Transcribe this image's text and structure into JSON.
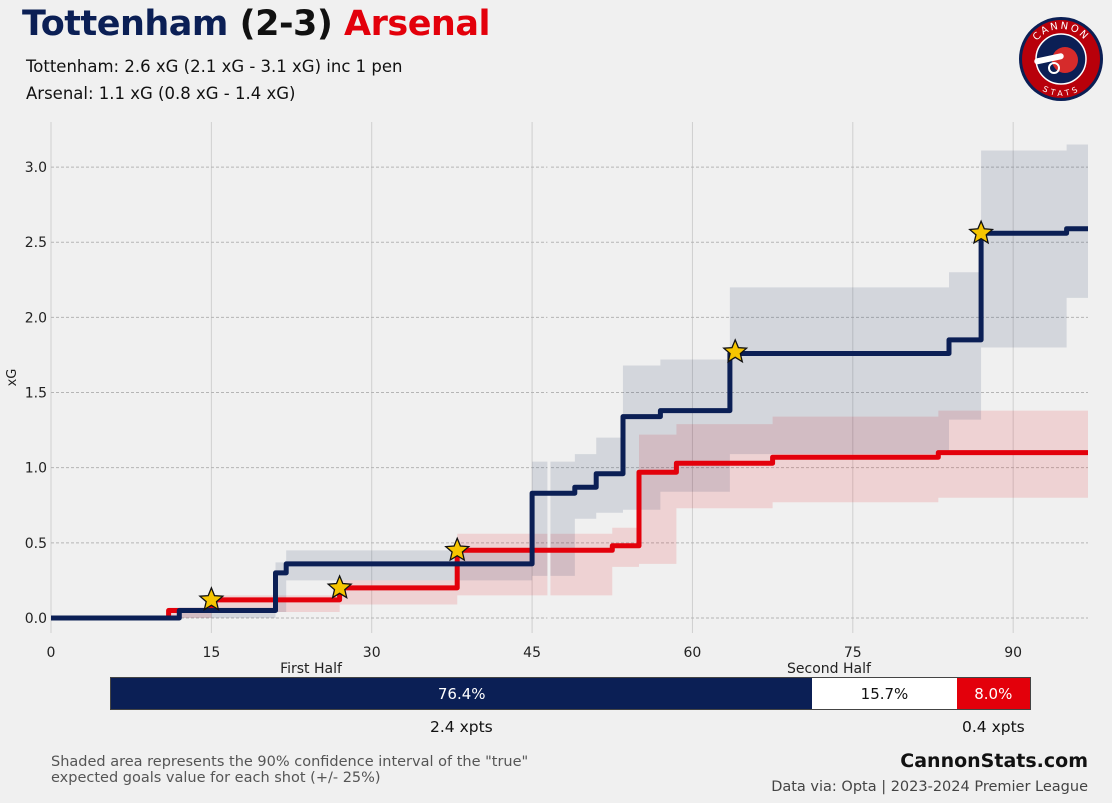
{
  "header": {
    "home_team": "Tottenham",
    "score": "(2-3)",
    "away_team": "Arsenal",
    "home_summary": "Tottenham: 2.6 xG (2.1 xG - 3.1 xG) inc 1 pen",
    "away_summary": "Arsenal: 1.1 xG (0.8 xG - 1.4 xG)"
  },
  "logo": {
    "top_text": "CANNON",
    "bottom_text": "STATS"
  },
  "colors": {
    "home": "#0b1f55",
    "away": "#e3000b",
    "goal_marker": "#f6c500"
  },
  "chart_data": {
    "type": "line",
    "step": true,
    "ylabel": "xG",
    "xlabel": "",
    "xlim": [
      0,
      97
    ],
    "ylim": [
      -0.1,
      3.3
    ],
    "x_ticks": [
      0,
      15,
      30,
      45,
      60,
      75,
      90
    ],
    "y_ticks": [
      0.0,
      0.5,
      1.0,
      1.5,
      2.0,
      2.5,
      3.0
    ],
    "period_labels": [
      "First Half",
      "Second Half"
    ],
    "grid": true,
    "series": [
      {
        "name": "Tottenham",
        "color": "#0b1f55",
        "steps": [
          [
            0,
            0
          ],
          [
            12,
            0
          ],
          [
            12,
            0.05
          ],
          [
            21,
            0.05
          ],
          [
            21,
            0.3
          ],
          [
            22,
            0.3
          ],
          [
            22,
            0.36
          ],
          [
            45,
            0.36
          ],
          [
            45,
            0.83
          ],
          [
            49,
            0.83
          ],
          [
            49,
            0.87
          ],
          [
            51,
            0.87
          ],
          [
            51,
            0.96
          ],
          [
            53.5,
            0.96
          ],
          [
            53.5,
            1.34
          ],
          [
            57,
            1.34
          ],
          [
            57,
            1.38
          ],
          [
            63.5,
            1.38
          ],
          [
            63.5,
            1.76
          ],
          [
            84,
            1.76
          ],
          [
            84,
            1.85
          ],
          [
            87,
            1.85
          ],
          [
            87,
            2.56
          ],
          [
            95,
            2.56
          ],
          [
            95,
            2.59
          ],
          [
            97,
            2.59
          ]
        ],
        "ci_low": [
          [
            0,
            0
          ],
          [
            12,
            0
          ],
          [
            21,
            0.04
          ],
          [
            22,
            0.25
          ],
          [
            45,
            0.28
          ],
          [
            49,
            0.66
          ],
          [
            51,
            0.7
          ],
          [
            53.5,
            0.72
          ],
          [
            57,
            0.84
          ],
          [
            63.5,
            1.09
          ],
          [
            84,
            1.32
          ],
          [
            87,
            1.8
          ],
          [
            95,
            2.13
          ],
          [
            97,
            2.13
          ]
        ],
        "ci_high": [
          [
            0,
            0
          ],
          [
            12,
            0.07
          ],
          [
            21,
            0.37
          ],
          [
            22,
            0.45
          ],
          [
            45,
            1.04
          ],
          [
            49,
            1.09
          ],
          [
            51,
            1.2
          ],
          [
            53.5,
            1.68
          ],
          [
            57,
            1.72
          ],
          [
            63.5,
            2.2
          ],
          [
            84,
            2.3
          ],
          [
            87,
            3.11
          ],
          [
            95,
            3.15
          ],
          [
            97,
            3.15
          ]
        ],
        "goals": [
          [
            15,
            0.12
          ],
          [
            27,
            0.2
          ],
          [
            38,
            0.45
          ],
          [
            64,
            1.77
          ],
          [
            87,
            2.56
          ]
        ],
        "goals_team": [
          "away",
          "away",
          "away",
          "home",
          "home"
        ]
      },
      {
        "name": "Arsenal",
        "color": "#e3000b",
        "steps": [
          [
            0,
            0
          ],
          [
            11,
            0
          ],
          [
            11,
            0.05
          ],
          [
            15,
            0.05
          ],
          [
            15,
            0.12
          ],
          [
            27,
            0.12
          ],
          [
            27,
            0.2
          ],
          [
            38,
            0.2
          ],
          [
            38,
            0.45
          ],
          [
            52.5,
            0.45
          ],
          [
            52.5,
            0.48
          ],
          [
            55,
            0.48
          ],
          [
            55,
            0.97
          ],
          [
            58.5,
            0.97
          ],
          [
            58.5,
            1.03
          ],
          [
            67.5,
            1.03
          ],
          [
            67.5,
            1.07
          ],
          [
            83,
            1.07
          ],
          [
            83,
            1.1
          ],
          [
            97,
            1.1
          ]
        ],
        "ci_low": [
          [
            0,
            0
          ],
          [
            11,
            0
          ],
          [
            15,
            0.04
          ],
          [
            27,
            0.09
          ],
          [
            38,
            0.15
          ],
          [
            52.5,
            0.34
          ],
          [
            55,
            0.36
          ],
          [
            58.5,
            0.73
          ],
          [
            67.5,
            0.77
          ],
          [
            83,
            0.8
          ],
          [
            97,
            0.82
          ]
        ],
        "ci_high": [
          [
            0,
            0
          ],
          [
            11,
            0.07
          ],
          [
            15,
            0.15
          ],
          [
            27,
            0.25
          ],
          [
            38,
            0.56
          ],
          [
            52.5,
            0.6
          ],
          [
            55,
            1.22
          ],
          [
            58.5,
            1.29
          ],
          [
            67.5,
            1.34
          ],
          [
            83,
            1.38
          ],
          [
            97,
            1.38
          ]
        ]
      }
    ]
  },
  "probability_bar": {
    "home_pct": 76.4,
    "draw_pct": 15.7,
    "away_pct": 8.0,
    "home_label": "76.4%",
    "draw_label": "15.7%",
    "away_label": "8.0%",
    "home_xpts": "2.4 xpts",
    "away_xpts": "0.4 xpts"
  },
  "footer": {
    "note_line1": "Shaded area represents the 90% confidence interval of the \"true\"",
    "note_line2": "expected goals value for each shot (+/- 25%)",
    "site": "CannonStats.com",
    "source": "Data via: Opta | 2023-2024 Premier League"
  }
}
